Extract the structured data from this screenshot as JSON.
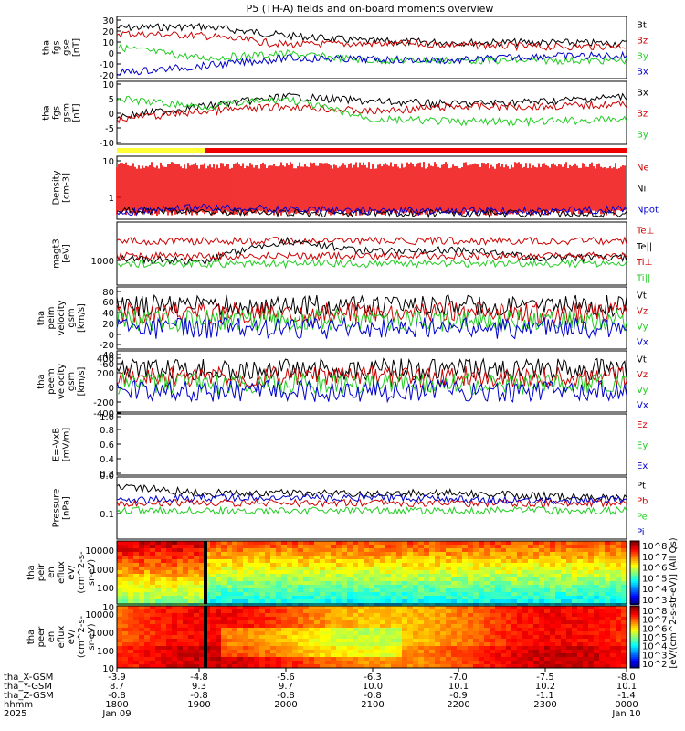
{
  "title": "P5 (TH-A) fields and on-board moments overview",
  "panels": [
    {
      "id": "fgs-gse",
      "ylabel": [
        "tha",
        "fgs",
        "gse",
        "[nT]"
      ],
      "ticks": [
        "30",
        "20",
        "10",
        "0",
        "-10",
        "-20"
      ],
      "legend": [
        {
          "t": "Bt",
          "c": "#000000"
        },
        {
          "t": "Bz",
          "c": "#cc0000"
        },
        {
          "t": "By",
          "c": "#22cc22"
        },
        {
          "t": "Bx",
          "c": "#0000cc"
        }
      ]
    },
    {
      "id": "fgs-gsm",
      "ylabel": [
        "tha",
        "fgs",
        "gsm",
        "[nT]"
      ],
      "ticks": [
        "10",
        "5",
        "0",
        "-5",
        "-10"
      ],
      "legend": [
        {
          "t": "Bx",
          "c": "#000000"
        },
        {
          "t": "Bz",
          "c": "#cc0000"
        },
        {
          "t": "By",
          "c": "#22cc22"
        }
      ]
    },
    {
      "id": "density",
      "ylabel": [
        "Density",
        "[cm-3]"
      ],
      "ticks": [
        "10",
        "1"
      ],
      "legend": [
        {
          "t": "Ne",
          "c": "#cc0000"
        },
        {
          "t": "Ni",
          "c": "#000000"
        },
        {
          "t": "Npot",
          "c": "#0000cc"
        }
      ]
    },
    {
      "id": "temp",
      "ylabel": [
        "magt3",
        "[eV]"
      ],
      "ticks": [
        "1000"
      ],
      "legend": [
        {
          "t": "Te⊥",
          "c": "#cc0000"
        },
        {
          "t": "Te||",
          "c": "#000000"
        },
        {
          "t": "Ti⊥",
          "c": "#cc0000"
        },
        {
          "t": "Ti||",
          "c": "#22cc22"
        }
      ]
    },
    {
      "id": "peim-vel",
      "ylabel": [
        "tha",
        "peim",
        "velocity",
        "gsm",
        "[km/s]"
      ],
      "ticks": [
        "80",
        "60",
        "40",
        "20",
        "0",
        "-20",
        "-40",
        "-60"
      ],
      "legend": [
        {
          "t": "Vt",
          "c": "#000000"
        },
        {
          "t": "Vz",
          "c": "#cc0000"
        },
        {
          "t": "Vy",
          "c": "#22cc22"
        },
        {
          "t": "Vx",
          "c": "#0000cc"
        }
      ]
    },
    {
      "id": "peem-vel",
      "ylabel": [
        "tha",
        "peem",
        "velocity",
        "gsm",
        "[km/s]"
      ],
      "ticks": [
        "400",
        "200",
        "0",
        "-200",
        "-400"
      ],
      "legend": [
        {
          "t": "Vt",
          "c": "#000000"
        },
        {
          "t": "Vz",
          "c": "#cc0000"
        },
        {
          "t": "Vy",
          "c": "#22cc22"
        },
        {
          "t": "Vx",
          "c": "#0000cc"
        }
      ]
    },
    {
      "id": "efield",
      "ylabel": [
        "E=-VxB",
        "[mV/m]"
      ],
      "ticks": [
        "1.0",
        "0.8",
        "0.6",
        "0.4",
        "0.2",
        "0.0"
      ],
      "legend": [
        {
          "t": "Ez",
          "c": "#cc0000"
        },
        {
          "t": "Ey",
          "c": "#22cc22"
        },
        {
          "t": "Ex",
          "c": "#0000cc"
        }
      ]
    },
    {
      "id": "pressure",
      "ylabel": [
        "Pressure",
        "[nPa]"
      ],
      "ticks": [
        "0.1"
      ],
      "legend": [
        {
          "t": "Pt",
          "c": "#000000"
        },
        {
          "t": "Pb",
          "c": "#cc0000"
        },
        {
          "t": "Pe",
          "c": "#22cc22"
        },
        {
          "t": "Pi",
          "c": "#0000cc"
        }
      ]
    },
    {
      "id": "peir",
      "ylabel": [
        "tha",
        "peir",
        "en",
        "eflux",
        "eV/",
        "(cm^2-s-",
        "sr-eV)"
      ],
      "ticks": [
        "10000",
        "1000",
        "100",
        "10"
      ],
      "legend": []
    },
    {
      "id": "peer",
      "ylabel": [
        "tha",
        "peer",
        "en",
        "eflux",
        "eV/",
        "(cm^2-s-",
        "sr-eV)"
      ],
      "ticks": [
        "10000",
        "1000",
        "100",
        "10"
      ],
      "legend": []
    }
  ],
  "colorbar_top": {
    "ticks": [
      "10^8",
      "10^7",
      "10^6",
      "10^5",
      "10^4",
      "10^3"
    ]
  },
  "colorbar_bottom": {
    "ticks": [
      "10^8",
      "10^7",
      "10^6",
      "10^5",
      "10^4",
      "10^3",
      "10^2"
    ]
  },
  "colorbar_label": "[eV/(cm^2-s-str-eV)] (All Qs)",
  "xaxis": {
    "row_labels": [
      "tha_X-GSM",
      "tha_Y-GSM",
      "tha_Z-GSM",
      "hhmm",
      "2025"
    ],
    "columns": [
      [
        "-3.9",
        "8.7",
        "-0.8",
        "1800",
        "Jan 09"
      ],
      [
        "-4.8",
        "9.3",
        "-0.8",
        "1900",
        ""
      ],
      [
        "-5.6",
        "9.7",
        "-0.8",
        "2000",
        ""
      ],
      [
        "-6.3",
        "10.0",
        "-0.8",
        "2100",
        ""
      ],
      [
        "-7.0",
        "10.1",
        "-0.9",
        "2200",
        ""
      ],
      [
        "-7.5",
        "10.2",
        "-1.1",
        "2300",
        ""
      ],
      [
        "-8.0",
        "10.1",
        "-1.4",
        "0000",
        "Jan 10"
      ]
    ]
  },
  "chart_data": {
    "type": "line",
    "title": "P5 (TH-A) fields and on-board moments overview",
    "x_hhmm": [
      "1800",
      "1900",
      "2000",
      "2100",
      "2200",
      "2300",
      "0000"
    ],
    "series": [
      {
        "panel": "fgs-gse",
        "name": "Bt",
        "values": [
          25,
          26,
          18,
          13,
          12,
          12,
          11
        ]
      },
      {
        "panel": "fgs-gse",
        "name": "Bz",
        "values": [
          20,
          18,
          10,
          11,
          10,
          8,
          9
        ]
      },
      {
        "panel": "fgs-gse",
        "name": "By",
        "values": [
          8,
          -2,
          2,
          -4,
          -4,
          -4,
          -4
        ]
      },
      {
        "panel": "fgs-gse",
        "name": "Bx",
        "values": [
          -15,
          -9,
          -2,
          -3,
          -4,
          0,
          0
        ]
      },
      {
        "panel": "fgs-gsm",
        "name": "Bx",
        "values": [
          -2,
          2,
          6,
          4,
          3,
          4,
          6
        ]
      },
      {
        "panel": "fgs-gsm",
        "name": "Bz",
        "values": [
          -3,
          0,
          2,
          0,
          2,
          2,
          3
        ]
      },
      {
        "panel": "fgs-gsm",
        "name": "By",
        "values": [
          5,
          2,
          5,
          -3,
          -4,
          -4,
          -3
        ]
      },
      {
        "panel": "density",
        "name": "Ne",
        "values": [
          6,
          6,
          5,
          6,
          6,
          6,
          6
        ]
      },
      {
        "panel": "density",
        "name": "Ni",
        "values": [
          0.35,
          0.35,
          0.3,
          0.3,
          0.3,
          0.3,
          0.3
        ]
      },
      {
        "panel": "density",
        "name": "Npot",
        "values": [
          0.3,
          0.45,
          0.4,
          0.35,
          0.35,
          0.35,
          0.4
        ]
      },
      {
        "panel": "temp",
        "name": "Te||",
        "values": [
          800,
          700,
          1500,
          1000,
          1100,
          800,
          800
        ]
      },
      {
        "panel": "pressure",
        "name": "Pt",
        "values": [
          0.25,
          0.2,
          0.2,
          0.2,
          0.2,
          0.18,
          0.17
        ]
      },
      {
        "panel": "pressure",
        "name": "Pi",
        "values": [
          0.15,
          0.17,
          0.17,
          0.17,
          0.16,
          0.15,
          0.16
        ]
      }
    ]
  }
}
